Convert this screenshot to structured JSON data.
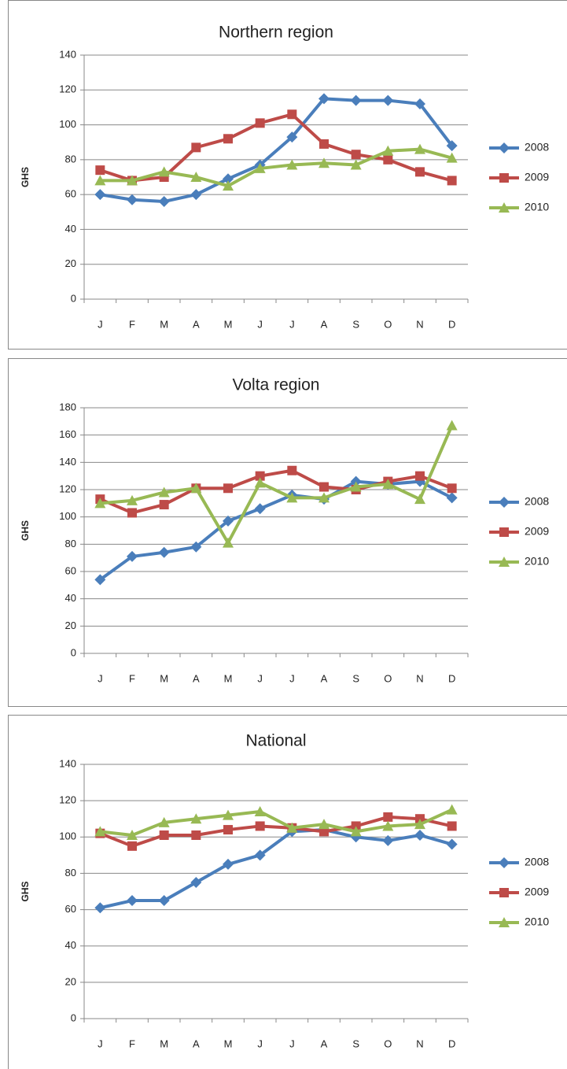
{
  "chart_data": [
    {
      "type": "line",
      "title": "Northern region",
      "y_label": "GHS",
      "categories": [
        "J",
        "F",
        "M",
        "A",
        "M",
        "J",
        "J",
        "A",
        "S",
        "O",
        "N",
        "D"
      ],
      "ylim": [
        0,
        140
      ],
      "yticks": [
        0,
        20,
        40,
        60,
        80,
        100,
        120,
        140
      ],
      "grid": true,
      "legend": "right",
      "series": [
        {
          "name": "2008",
          "color": "#4a7ebb",
          "marker": "diamond",
          "values": [
            60,
            57,
            56,
            60,
            69,
            77,
            93,
            115,
            114,
            114,
            112,
            88
          ]
        },
        {
          "name": "2009",
          "color": "#be4b48",
          "marker": "square",
          "values": [
            74,
            68,
            70,
            87,
            92,
            101,
            106,
            89,
            83,
            80,
            73,
            68
          ]
        },
        {
          "name": "2010",
          "color": "#98b954",
          "marker": "triangle",
          "values": [
            68,
            68,
            73,
            70,
            65,
            75,
            77,
            78,
            77,
            85,
            86,
            81
          ]
        }
      ]
    },
    {
      "type": "line",
      "title": "Volta region",
      "y_label": "GHS",
      "categories": [
        "J",
        "F",
        "M",
        "A",
        "M",
        "J",
        "J",
        "A",
        "S",
        "O",
        "N",
        "D"
      ],
      "ylim": [
        0,
        180
      ],
      "yticks": [
        0,
        20,
        40,
        60,
        80,
        100,
        120,
        140,
        160,
        180
      ],
      "grid": true,
      "legend": "right",
      "series": [
        {
          "name": "2008",
          "color": "#4a7ebb",
          "marker": "diamond",
          "values": [
            54,
            71,
            74,
            78,
            97,
            106,
            116,
            113,
            126,
            124,
            126,
            114
          ]
        },
        {
          "name": "2009",
          "color": "#be4b48",
          "marker": "square",
          "values": [
            113,
            103,
            109,
            121,
            121,
            130,
            134,
            122,
            120,
            126,
            130,
            121
          ]
        },
        {
          "name": "2010",
          "color": "#98b954",
          "marker": "triangle",
          "values": [
            110,
            112,
            118,
            121,
            81,
            125,
            114,
            114,
            122,
            124,
            113,
            167
          ]
        }
      ]
    },
    {
      "type": "line",
      "title": "National",
      "y_label": "GHS",
      "categories": [
        "J",
        "F",
        "M",
        "A",
        "M",
        "J",
        "J",
        "A",
        "S",
        "O",
        "N",
        "D"
      ],
      "ylim": [
        0,
        140
      ],
      "yticks": [
        0,
        20,
        40,
        60,
        80,
        100,
        120,
        140
      ],
      "grid": true,
      "legend": "right",
      "series": [
        {
          "name": "2008",
          "color": "#4a7ebb",
          "marker": "diamond",
          "values": [
            61,
            65,
            65,
            75,
            85,
            90,
            103,
            104,
            100,
            98,
            101,
            96
          ]
        },
        {
          "name": "2009",
          "color": "#be4b48",
          "marker": "square",
          "values": [
            102,
            95,
            101,
            101,
            104,
            106,
            105,
            103,
            106,
            111,
            110,
            106
          ]
        },
        {
          "name": "2010",
          "color": "#98b954",
          "marker": "triangle",
          "values": [
            103,
            101,
            108,
            110,
            112,
            114,
            105,
            107,
            103,
            106,
            107,
            115
          ]
        }
      ]
    }
  ]
}
